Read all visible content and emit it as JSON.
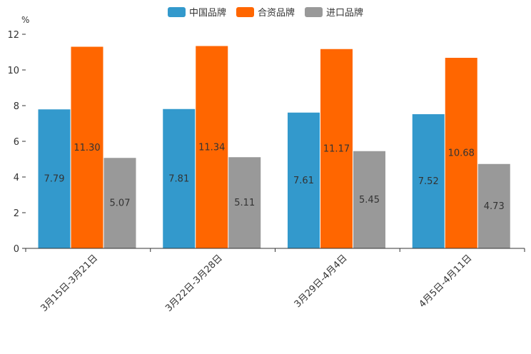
{
  "chart_data": {
    "type": "bar",
    "title": "",
    "unit_label": "%",
    "xlabel": "",
    "ylabel": "%",
    "ylim": [
      0,
      12
    ],
    "yticks": [
      0,
      2,
      4,
      6,
      8,
      10,
      12
    ],
    "categories": [
      "3月15日-3月21日",
      "3月22日-3月28日",
      "3月29日-4月4日",
      "4月5日-4月11日"
    ],
    "series": [
      {
        "name": "中国品牌",
        "color": "#3399CC",
        "values": [
          7.79,
          7.81,
          7.61,
          7.52
        ],
        "labels": [
          "7.79",
          "7.81",
          "7.61",
          "7.52"
        ]
      },
      {
        "name": "合资品牌",
        "color": "#FF6600",
        "values": [
          11.3,
          11.34,
          11.17,
          10.68
        ],
        "labels": [
          "11.30",
          "11.34",
          "11.17",
          "10.68"
        ]
      },
      {
        "name": "进口品牌",
        "color": "#999999",
        "values": [
          5.07,
          5.11,
          5.45,
          4.73
        ],
        "labels": [
          "5.07",
          "5.11",
          "5.45",
          "4.73"
        ]
      }
    ],
    "legend_position": "top-center",
    "grid": false
  }
}
